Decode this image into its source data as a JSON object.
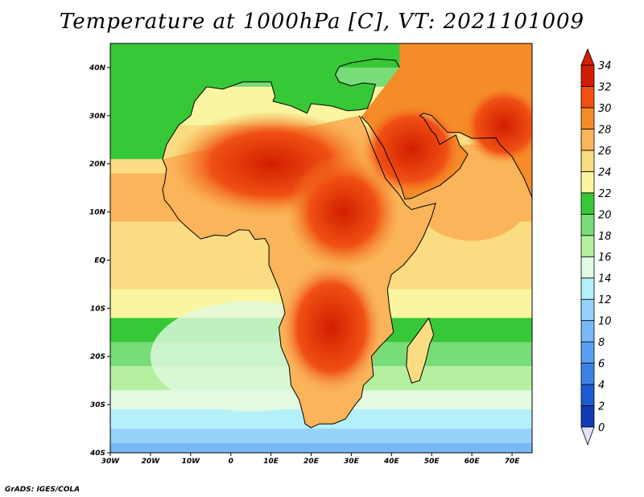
{
  "title": "Temperature at 1000hPa [C], VT: 2021101009",
  "credit": "GrADS: IGES/COLA",
  "map": {
    "lon_range": [
      -30,
      75
    ],
    "lat_range": [
      -40,
      45
    ],
    "lon_ticks": [
      {
        "value": -30,
        "label": "30W"
      },
      {
        "value": -20,
        "label": "20W"
      },
      {
        "value": -10,
        "label": "10W"
      },
      {
        "value": 0,
        "label": "0"
      },
      {
        "value": 10,
        "label": "10E"
      },
      {
        "value": 20,
        "label": "20E"
      },
      {
        "value": 30,
        "label": "30E"
      },
      {
        "value": 40,
        "label": "40E"
      },
      {
        "value": 50,
        "label": "50E"
      },
      {
        "value": 60,
        "label": "60E"
      },
      {
        "value": 70,
        "label": "70E"
      }
    ],
    "lat_ticks": [
      {
        "value": 40,
        "label": "40N"
      },
      {
        "value": 30,
        "label": "30N"
      },
      {
        "value": 20,
        "label": "20N"
      },
      {
        "value": 10,
        "label": "10N"
      },
      {
        "value": 0,
        "label": "EQ"
      },
      {
        "value": -10,
        "label": "10S"
      },
      {
        "value": -20,
        "label": "20S"
      },
      {
        "value": -30,
        "label": "30S"
      },
      {
        "value": -40,
        "label": "40S"
      }
    ]
  },
  "colorbar": {
    "levels": [
      0,
      2,
      4,
      6,
      8,
      10,
      12,
      14,
      16,
      18,
      20,
      22,
      24,
      26,
      28,
      30,
      32,
      34
    ],
    "colors": [
      "#0a1e8c",
      "#0f3cb4",
      "#1e5ad2",
      "#3c82e6",
      "#5aa0f0",
      "#78b9f5",
      "#96d2fa",
      "#b4f0fa",
      "#e1fae1",
      "#b4f0a0",
      "#78dc78",
      "#37c837",
      "#faf5a0",
      "#fadc82",
      "#fab45a",
      "#f58c28",
      "#f05014",
      "#d21e00",
      "#a00000"
    ],
    "under_color": "#e1e1fa",
    "over_color": "#d21e00"
  },
  "coastline": [
    [
      -17,
      21
    ],
    [
      -16,
      24
    ],
    [
      -13,
      28
    ],
    [
      -10,
      30
    ],
    [
      -9,
      33
    ],
    [
      -6,
      36
    ],
    [
      -2,
      35.5
    ],
    [
      3,
      37
    ],
    [
      10,
      37
    ],
    [
      11,
      34
    ],
    [
      10.5,
      33
    ],
    [
      15,
      32
    ],
    [
      19,
      30.5
    ],
    [
      20,
      32.5
    ],
    [
      25,
      32
    ],
    [
      29,
      31
    ],
    [
      32,
      31.2
    ],
    [
      34,
      31.5
    ],
    [
      35,
      33.5
    ],
    [
      36,
      36.5
    ],
    [
      33,
      36.8
    ],
    [
      30,
      36.2
    ],
    [
      27,
      37
    ],
    [
      26,
      38.5
    ],
    [
      27,
      40.2
    ],
    [
      30,
      41
    ],
    [
      36,
      41.8
    ],
    [
      41,
      41.5
    ],
    [
      42,
      40
    ]
  ],
  "coastline2": [
    [
      32,
      30
    ],
    [
      33.5,
      27.5
    ],
    [
      35,
      24
    ],
    [
      37,
      20
    ],
    [
      38.5,
      17
    ],
    [
      40,
      15.5
    ],
    [
      42,
      13.5
    ],
    [
      43.5,
      11.5
    ],
    [
      45,
      10.5
    ],
    [
      48,
      11.2
    ],
    [
      51,
      11.8
    ],
    [
      50,
      9
    ],
    [
      48,
      5
    ],
    [
      46,
      2
    ],
    [
      43,
      -1
    ],
    [
      40,
      -3
    ],
    [
      39,
      -6
    ],
    [
      39.5,
      -10
    ],
    [
      40.5,
      -15
    ],
    [
      37,
      -18
    ],
    [
      35,
      -20
    ],
    [
      35.5,
      -24
    ],
    [
      33,
      -26
    ],
    [
      32.5,
      -28.5
    ],
    [
      31,
      -30
    ],
    [
      28.5,
      -33
    ],
    [
      25.5,
      -34
    ],
    [
      22,
      -34
    ],
    [
      20,
      -34.8
    ],
    [
      18.5,
      -34
    ],
    [
      18,
      -32
    ],
    [
      17,
      -29
    ],
    [
      15,
      -26
    ],
    [
      14.5,
      -22
    ],
    [
      12.5,
      -18
    ],
    [
      12,
      -14
    ],
    [
      13.5,
      -11
    ],
    [
      13,
      -9
    ],
    [
      12,
      -6
    ],
    [
      9.5,
      -1
    ],
    [
      9.5,
      3
    ],
    [
      8.5,
      4.5
    ],
    [
      6,
      4.3
    ],
    [
      4.5,
      6.2
    ],
    [
      2,
      6.3
    ],
    [
      -1,
      5
    ],
    [
      -4,
      5.2
    ],
    [
      -7.5,
      4.4
    ],
    [
      -11,
      6.9
    ],
    [
      -13,
      8.5
    ],
    [
      -15,
      11
    ],
    [
      -16.5,
      12.5
    ],
    [
      -17,
      14.7
    ],
    [
      -16.5,
      16
    ],
    [
      -16,
      19
    ],
    [
      -17,
      21
    ]
  ],
  "arabia": [
    [
      32.5,
      29.8
    ],
    [
      34.5,
      28
    ],
    [
      36,
      26
    ],
    [
      38,
      23.5
    ],
    [
      39,
      21.5
    ],
    [
      41,
      18
    ],
    [
      42.5,
      15
    ],
    [
      43.3,
      12.7
    ],
    [
      45,
      12.8
    ],
    [
      48,
      14
    ],
    [
      52,
      15.5
    ],
    [
      55,
      17.5
    ],
    [
      57,
      19
    ],
    [
      59,
      22
    ],
    [
      57,
      23.8
    ],
    [
      56,
      26
    ],
    [
      52,
      24
    ],
    [
      51,
      26
    ],
    [
      50,
      26.8
    ],
    [
      48,
      29.5
    ],
    [
      47,
      30
    ],
    [
      48,
      30.5
    ],
    [
      50,
      30
    ],
    [
      54,
      26.5
    ],
    [
      57,
      26.5
    ],
    [
      60,
      25.3
    ],
    [
      66,
      25.4
    ],
    [
      67,
      24
    ],
    [
      70,
      21.5
    ],
    [
      73,
      17
    ],
    [
      75,
      13
    ]
  ],
  "madagascar": [
    [
      49.3,
      -12
    ],
    [
      50.5,
      -15.5
    ],
    [
      49.5,
      -17.5
    ],
    [
      48.5,
      -21
    ],
    [
      47,
      -25
    ],
    [
      45,
      -25.5
    ],
    [
      43.7,
      -22
    ],
    [
      44,
      -18
    ],
    [
      46,
      -15.8
    ],
    [
      48,
      -13.5
    ],
    [
      49.3,
      -12
    ]
  ]
}
